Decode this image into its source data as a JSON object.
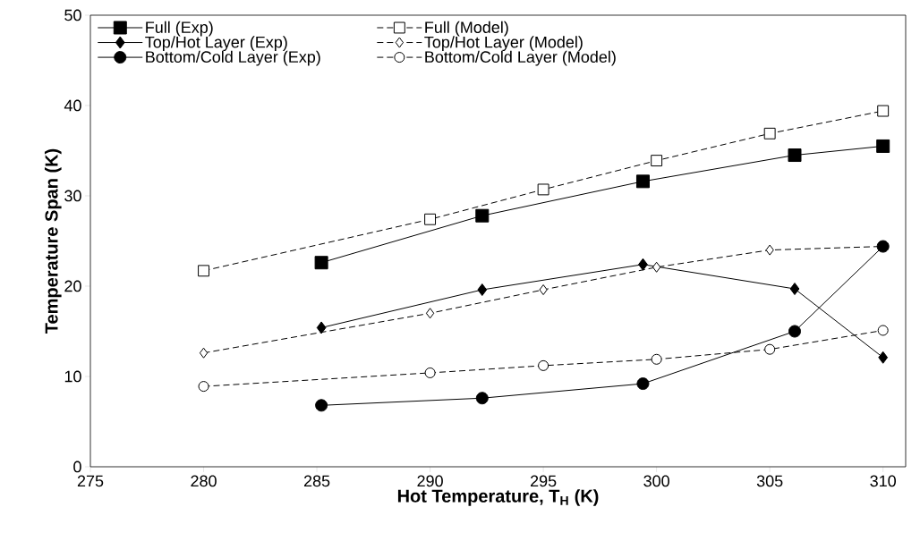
{
  "chart_data": {
    "type": "line",
    "xlabel": "Hot Temperature, T$_{H}$ (K)",
    "ylabel": "Temperature Span (K)",
    "xlim": [
      275,
      311
    ],
    "xticks": [
      275,
      280,
      285,
      290,
      295,
      300,
      305,
      310
    ],
    "ylim": [
      0,
      50
    ],
    "yticks": [
      0,
      10,
      20,
      30,
      40,
      50
    ],
    "grid": false,
    "legend": "top left",
    "series": [
      {
        "name": "Full (Exp)",
        "color": "#000000",
        "marker": "square",
        "line_style": "solid",
        "x": [
          285.2,
          292.3,
          299.4,
          306.1,
          310
        ],
        "values": [
          22.6,
          27.8,
          31.6,
          34.5,
          35.5
        ]
      },
      {
        "name": "Full (Model)",
        "color": "#000000",
        "marker": "square",
        "line_style": "dashed",
        "x": [
          280,
          290,
          295,
          300,
          305,
          310
        ],
        "values": [
          21.7,
          27.4,
          30.7,
          33.9,
          36.9,
          39.4
        ]
      },
      {
        "name": "Top/Hot Layer (Exp)",
        "color": "#000000",
        "marker": "diamond",
        "line_style": "solid",
        "x": [
          285.2,
          292.3,
          299.4,
          306.1,
          310
        ],
        "values": [
          15.4,
          19.6,
          22.4,
          19.7,
          12.1
        ]
      },
      {
        "name": "Top/Hot Layer (Model)",
        "color": "#000000",
        "marker": "diamond",
        "line_style": "dashed",
        "x": [
          280,
          290,
          295,
          300,
          305,
          310
        ],
        "values": [
          12.6,
          17.0,
          19.6,
          22.1,
          24.0,
          24.4
        ]
      },
      {
        "name": "Bottom/Cold Layer (Exp)",
        "color": "#000000",
        "marker": "circle",
        "line_style": "solid",
        "x": [
          285.2,
          292.3,
          299.4,
          306.1,
          310
        ],
        "values": [
          6.8,
          7.6,
          9.2,
          15.0,
          24.4
        ]
      },
      {
        "name": "Bottom/Cold Layer (Model)",
        "color": "#000000",
        "marker": "circle",
        "line_style": "dashed",
        "x": [
          280,
          290,
          295,
          300,
          305,
          310
        ],
        "values": [
          8.9,
          10.4,
          11.2,
          11.9,
          13.0,
          15.1
        ]
      }
    ]
  }
}
